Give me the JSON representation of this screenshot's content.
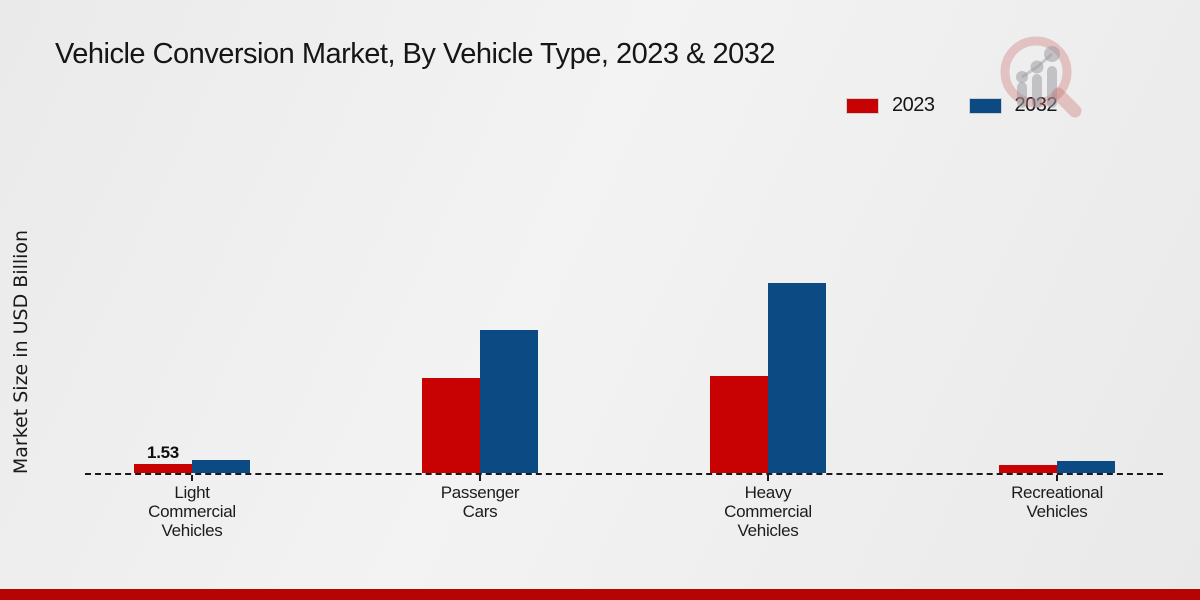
{
  "chart_data": {
    "type": "bar",
    "title": "Vehicle Conversion Market, By Vehicle Type, 2023 & 2032",
    "ylabel": "Market Size in USD Billion",
    "xlabel": "",
    "categories": [
      "Light Commercial Vehicles",
      "Passenger Cars",
      "Heavy Commercial Vehicles",
      "Recreational Vehicles"
    ],
    "category_lines": [
      [
        "Light",
        "Commercial",
        "Vehicles"
      ],
      [
        "Passenger",
        "Cars"
      ],
      [
        "Heavy",
        "Commercial",
        "Vehicles"
      ],
      [
        "Recreational",
        "Vehicles"
      ]
    ],
    "series": [
      {
        "name": "2023",
        "color": "#c80202",
        "values": [
          1.53,
          16.1,
          16.4,
          1.4
        ],
        "value_labels": [
          "1.53",
          "",
          "",
          ""
        ]
      },
      {
        "name": "2032",
        "color": "#0c4a84",
        "values": [
          2.2,
          24.2,
          32.2,
          2.1
        ],
        "value_labels": [
          "",
          "",
          "",
          ""
        ]
      }
    ],
    "legend_position": "top-right",
    "legend_labels": [
      "2023",
      "2032"
    ],
    "grid": false,
    "baseline_style": "dashed",
    "ylim": [
      0,
      34
    ],
    "value_label_note": "only Light Commercial Vehicles 2023 bar is labeled: 1.53"
  },
  "colors": {
    "series_2023": "#c80202",
    "series_2032": "#0c4a84",
    "footer_bar": "#b40404",
    "baseline": "#1a1a1a",
    "background": "#ededed"
  },
  "branding": {
    "logo": "magnifier-bar-chart-watermark"
  }
}
